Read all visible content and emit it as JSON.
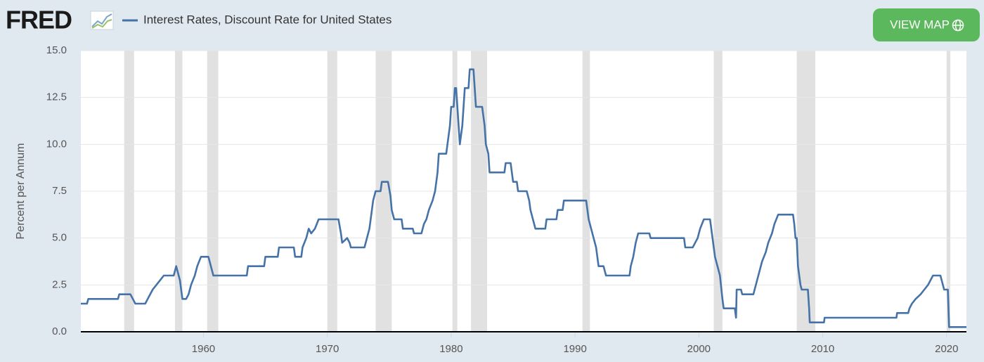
{
  "logo": "FRED",
  "button": "VIEW MAP",
  "chart_data": {
    "type": "line",
    "ylabel": "Percent per Annum",
    "xlim": [
      1950.1,
      2021.6
    ],
    "ylim": [
      0,
      15
    ],
    "xticks": [
      1960,
      1970,
      1980,
      1990,
      2000,
      2010,
      2020
    ],
    "yticks": [
      {
        "value": 0,
        "label": "0.0"
      },
      2.5,
      {
        "value": 5,
        "label": "5.0"
      },
      7.5,
      {
        "value": 10,
        "label": "10.0"
      },
      12.5,
      {
        "value": 15,
        "label": "15.0"
      }
    ],
    "grid": true,
    "recessions": [
      [
        1953.6,
        1954.4
      ],
      [
        1957.7,
        1958.3
      ],
      [
        1960.3,
        1961.2
      ],
      [
        1970.0,
        1970.8
      ],
      [
        1973.9,
        1975.2
      ],
      [
        1980.1,
        1980.5
      ],
      [
        1981.6,
        1982.9
      ],
      [
        1990.6,
        1991.2
      ],
      [
        2001.2,
        2001.9
      ],
      [
        2007.9,
        2009.4
      ],
      [
        2020.0,
        2020.3
      ]
    ],
    "x": [
      1950.1,
      1950.6,
      1950.7,
      1953.1,
      1953.2,
      1954.1,
      1954.3,
      1954.5,
      1955.3,
      1955.5,
      1955.7,
      1955.9,
      1956.2,
      1956.5,
      1956.8,
      1957.6,
      1957.8,
      1958.1,
      1958.3,
      1958.6,
      1958.8,
      1959.0,
      1959.3,
      1959.5,
      1959.8,
      1960.4,
      1960.6,
      1960.8,
      1963.5,
      1963.6,
      1964.9,
      1965.0,
      1966.0,
      1966.1,
      1967.3,
      1967.4,
      1967.9,
      1968.0,
      1968.3,
      1968.5,
      1968.7,
      1969.0,
      1969.3,
      1970.9,
      1971.1,
      1971.2,
      1971.6,
      1971.8,
      1971.9,
      1973.0,
      1973.2,
      1973.4,
      1973.6,
      1973.7,
      1973.9,
      1974.3,
      1974.4,
      1974.9,
      1975.1,
      1975.2,
      1975.4,
      1976.0,
      1976.1,
      1976.9,
      1977.0,
      1977.6,
      1977.8,
      1978.0,
      1978.2,
      1978.5,
      1978.7,
      1978.9,
      1979.0,
      1979.6,
      1979.8,
      1979.9,
      1980.0,
      1980.2,
      1980.3,
      1980.4,
      1980.6,
      1980.7,
      1980.9,
      1981.0,
      1981.1,
      1981.4,
      1981.5,
      1981.8,
      1982.0,
      1982.5,
      1982.7,
      1982.8,
      1983.0,
      1983.1,
      1984.3,
      1984.4,
      1984.8,
      1985.0,
      1985.3,
      1985.4,
      1986.1,
      1986.3,
      1986.4,
      1986.6,
      1986.8,
      1987.6,
      1987.7,
      1988.5,
      1988.6,
      1989.0,
      1989.1,
      1990.9,
      1991.0,
      1991.1,
      1991.3,
      1991.5,
      1991.7,
      1991.9,
      1992.3,
      1992.5,
      1994.4,
      1994.5,
      1994.7,
      1994.9,
      1995.1,
      1996.0,
      1996.1,
      1998.8,
      1998.9,
      1999.5,
      1999.7,
      1999.9,
      2000.1,
      2000.4,
      2000.9,
      2001.1,
      2001.3,
      2001.5,
      2001.7,
      2001.9,
      2002.0,
      2002.9,
      2003.0,
      2003.05,
      2003.4,
      2003.5,
      2004.4,
      2004.5,
      2004.7,
      2004.9,
      2005.1,
      2005.4,
      2005.6,
      2005.9,
      2006.1,
      2006.4,
      2007.6,
      2007.7,
      2007.8,
      2007.9,
      2008.0,
      2008.2,
      2008.3,
      2008.8,
      2008.9,
      2008.95,
      2010.1,
      2010.15,
      2015.95,
      2016.0,
      2016.9,
      2017.0,
      2017.2,
      2017.5,
      2017.9,
      2018.2,
      2018.5,
      2018.7,
      2018.9,
      2019.5,
      2019.6,
      2019.7,
      2019.8,
      2020.1,
      2020.2,
      2021.6
    ],
    "series": [
      {
        "name": "Interest Rates, Discount Rate for United States",
        "color": "#4572a7",
        "values": [
          1.5,
          1.5,
          1.75,
          1.75,
          2.0,
          2.0,
          1.75,
          1.5,
          1.5,
          1.75,
          2.0,
          2.25,
          2.5,
          2.75,
          3.0,
          3.0,
          3.5,
          2.75,
          1.75,
          1.75,
          2.0,
          2.5,
          3.0,
          3.5,
          4.0,
          4.0,
          3.5,
          3.0,
          3.0,
          3.5,
          3.5,
          4.0,
          4.0,
          4.5,
          4.5,
          4.0,
          4.0,
          4.5,
          5.0,
          5.5,
          5.25,
          5.5,
          6.0,
          6.0,
          5.25,
          4.75,
          5.0,
          4.75,
          4.5,
          4.5,
          5.0,
          5.5,
          6.5,
          7.0,
          7.5,
          7.5,
          8.0,
          8.0,
          7.25,
          6.5,
          6.0,
          6.0,
          5.5,
          5.5,
          5.25,
          5.25,
          5.75,
          6.0,
          6.5,
          7.0,
          7.5,
          8.5,
          9.5,
          9.5,
          10.5,
          11.0,
          12.0,
          12.0,
          13.0,
          13.0,
          11.0,
          10.0,
          11.0,
          12.0,
          13.0,
          13.0,
          14.0,
          14.0,
          12.0,
          12.0,
          11.0,
          10.0,
          9.5,
          8.5,
          8.5,
          9.0,
          9.0,
          8.0,
          8.0,
          7.5,
          7.5,
          7.0,
          6.5,
          6.0,
          5.5,
          5.5,
          6.0,
          6.0,
          6.5,
          6.5,
          7.0,
          7.0,
          6.5,
          6.0,
          5.5,
          5.0,
          4.5,
          3.5,
          3.5,
          3.0,
          3.0,
          3.5,
          4.0,
          4.75,
          5.25,
          5.25,
          5.0,
          5.0,
          4.5,
          4.5,
          4.75,
          5.0,
          5.5,
          6.0,
          6.0,
          5.0,
          4.0,
          3.5,
          3.0,
          1.75,
          1.25,
          1.25,
          0.75,
          2.25,
          2.25,
          2.0,
          2.0,
          2.25,
          2.75,
          3.25,
          3.75,
          4.25,
          4.75,
          5.25,
          5.75,
          6.25,
          6.25,
          5.75,
          5.0,
          5.0,
          3.5,
          2.5,
          2.25,
          2.25,
          1.25,
          0.5,
          0.5,
          0.75,
          0.75,
          1.0,
          1.0,
          1.25,
          1.5,
          1.75,
          2.0,
          2.25,
          2.5,
          2.75,
          3.0,
          3.0,
          2.75,
          2.5,
          2.25,
          2.25,
          0.25,
          0.25
        ]
      }
    ]
  }
}
